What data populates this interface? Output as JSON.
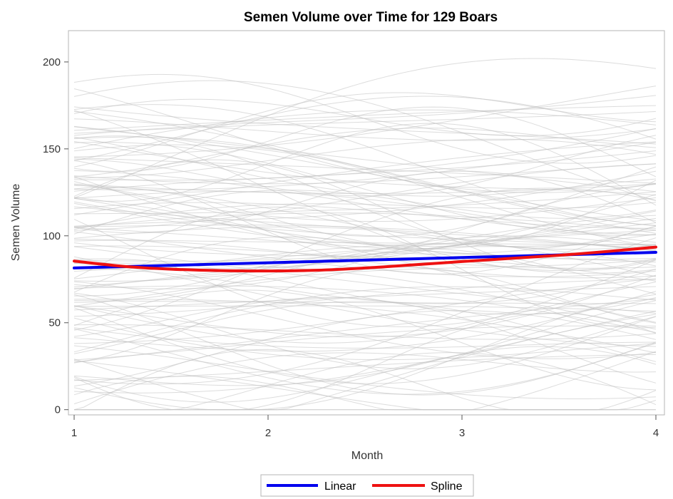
{
  "chart_data": {
    "type": "line",
    "title": "Semen Volume over Time for 129 Boars",
    "xlabel": "Month",
    "ylabel": "Semen Volume",
    "xlim": [
      1,
      4
    ],
    "ylim": [
      -3,
      218
    ],
    "xticks": [
      1,
      2,
      3,
      4
    ],
    "yticks": [
      0,
      50,
      100,
      150,
      200
    ],
    "grid": false,
    "legend_position": "bottom-center",
    "individual_curves": {
      "count": 129,
      "color": "#bfbfbf",
      "shown_in_legend": false
    },
    "series": [
      {
        "name": "Linear",
        "color": "#0000ee",
        "x": [
          1,
          1.5,
          2,
          2.5,
          3,
          3.5,
          4
        ],
        "values": [
          81.5,
          83,
          84.5,
          86,
          87.5,
          89,
          90.5
        ]
      },
      {
        "name": "Spline",
        "color": "#ee1111",
        "x": [
          1,
          1.25,
          1.5,
          1.75,
          2,
          2.25,
          2.5,
          2.75,
          3,
          3.25,
          3.5,
          3.75,
          4
        ],
        "values": [
          85.5,
          82.5,
          80.8,
          80,
          79.8,
          80.2,
          81.5,
          83.3,
          85.2,
          87,
          88.8,
          91,
          93.5
        ]
      }
    ]
  }
}
